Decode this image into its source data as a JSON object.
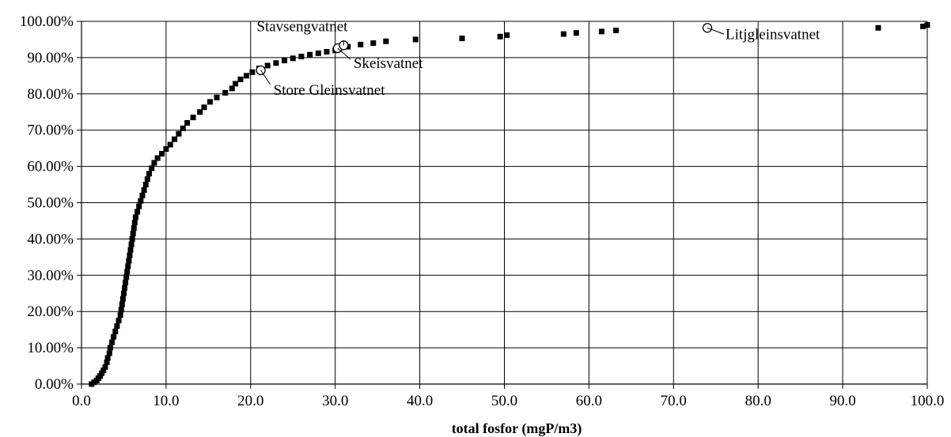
{
  "chart_data": {
    "type": "scatter",
    "title": "",
    "xlabel": "total fosfor (mgP/m3)",
    "ylabel": "",
    "xlim": [
      0,
      100
    ],
    "ylim": [
      0,
      100
    ],
    "x_ticks": [
      "0.0",
      "10.0",
      "20.0",
      "30.0",
      "40.0",
      "50.0",
      "60.0",
      "70.0",
      "80.0",
      "90.0",
      "100.0"
    ],
    "y_ticks": [
      "0.00%",
      "10.00%",
      "20.00%",
      "30.00%",
      "40.00%",
      "50.00%",
      "60.00%",
      "70.00%",
      "80.00%",
      "90.00%",
      "100.00%"
    ],
    "grid": true,
    "legend": "none",
    "series": [
      {
        "marker": "filled-square",
        "color": "#000000",
        "points": [
          [
            1.2,
            0.0
          ],
          [
            1.5,
            0.5
          ],
          [
            1.8,
            1.0
          ],
          [
            2.0,
            1.6
          ],
          [
            2.2,
            2.2
          ],
          [
            2.4,
            3.0
          ],
          [
            2.6,
            3.8
          ],
          [
            2.8,
            4.7
          ],
          [
            3.0,
            6.0
          ],
          [
            3.1,
            7.2
          ],
          [
            3.3,
            8.5
          ],
          [
            3.4,
            10.0
          ],
          [
            3.6,
            11.5
          ],
          [
            3.8,
            13.0
          ],
          [
            4.0,
            14.5
          ],
          [
            4.2,
            16.0
          ],
          [
            4.4,
            17.5
          ],
          [
            4.6,
            19.0
          ],
          [
            4.7,
            20.5
          ],
          [
            4.8,
            22.0
          ],
          [
            4.9,
            23.5
          ],
          [
            5.0,
            25.0
          ],
          [
            5.1,
            26.5
          ],
          [
            5.2,
            28.0
          ],
          [
            5.3,
            29.5
          ],
          [
            5.4,
            31.0
          ],
          [
            5.5,
            32.5
          ],
          [
            5.6,
            34.0
          ],
          [
            5.7,
            35.5
          ],
          [
            5.8,
            37.0
          ],
          [
            5.9,
            38.5
          ],
          [
            6.0,
            40.0
          ],
          [
            6.1,
            41.5
          ],
          [
            6.2,
            43.0
          ],
          [
            6.3,
            44.5
          ],
          [
            6.4,
            46.0
          ],
          [
            6.6,
            47.5
          ],
          [
            6.8,
            49.0
          ],
          [
            7.0,
            50.5
          ],
          [
            7.2,
            52.0
          ],
          [
            7.4,
            53.5
          ],
          [
            7.6,
            55.0
          ],
          [
            7.8,
            56.5
          ],
          [
            8.0,
            58.0
          ],
          [
            8.3,
            59.5
          ],
          [
            8.6,
            61.0
          ],
          [
            9.0,
            62.3
          ],
          [
            9.5,
            63.5
          ],
          [
            10.0,
            64.8
          ],
          [
            10.5,
            66.0
          ],
          [
            11.0,
            67.5
          ],
          [
            11.5,
            69.0
          ],
          [
            12.0,
            70.5
          ],
          [
            12.5,
            72.0
          ],
          [
            13.2,
            73.5
          ],
          [
            14.0,
            75.0
          ],
          [
            14.5,
            76.3
          ],
          [
            15.2,
            77.8
          ],
          [
            16.0,
            79.0
          ],
          [
            17.0,
            80.3
          ],
          [
            17.8,
            81.5
          ],
          [
            18.2,
            82.8
          ],
          [
            18.8,
            84.0
          ],
          [
            19.5,
            85.0
          ],
          [
            20.2,
            86.0
          ],
          [
            21.0,
            87.0
          ],
          [
            22.0,
            87.8
          ],
          [
            23.0,
            88.5
          ],
          [
            24.0,
            89.2
          ],
          [
            25.0,
            89.8
          ],
          [
            26.0,
            90.3
          ],
          [
            27.0,
            90.8
          ],
          [
            28.0,
            91.2
          ],
          [
            29.0,
            91.6
          ],
          [
            30.0,
            92.0
          ],
          [
            31.5,
            93.0
          ],
          [
            33.0,
            93.6
          ],
          [
            34.5,
            94.0
          ],
          [
            36.0,
            94.5
          ],
          [
            39.5,
            95.0
          ],
          [
            45.0,
            95.3
          ],
          [
            49.5,
            95.8
          ],
          [
            50.3,
            96.2
          ],
          [
            57.0,
            96.5
          ],
          [
            58.5,
            96.8
          ],
          [
            61.5,
            97.2
          ],
          [
            63.2,
            97.5
          ],
          [
            94.2,
            98.2
          ],
          [
            99.5,
            98.6
          ],
          [
            100.0,
            99.0
          ]
        ]
      },
      {
        "marker": "open-circle",
        "color": "#000000",
        "points": [
          [
            21.2,
            86.5
          ],
          [
            30.3,
            92.6
          ],
          [
            31.0,
            93.4
          ],
          [
            74.0,
            98.2
          ]
        ]
      }
    ],
    "annotations": [
      {
        "label": "Stavsengvatnet",
        "x": 31.0,
        "y": 93.4
      },
      {
        "label": "Skeisvatnet",
        "x": 30.3,
        "y": 92.6
      },
      {
        "label": "Store Gleinsvatnet",
        "x": 21.2,
        "y": 86.5
      },
      {
        "label": "Litjgleinsvatnet",
        "x": 74.0,
        "y": 98.2
      }
    ]
  }
}
